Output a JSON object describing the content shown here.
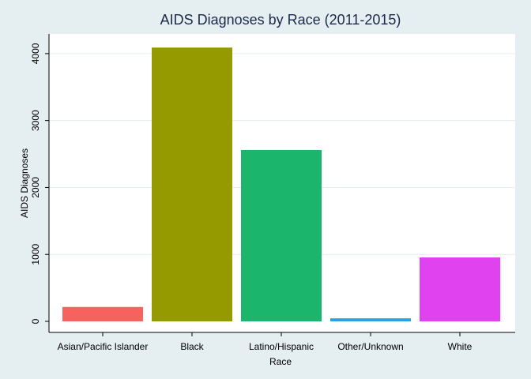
{
  "chart_data": {
    "type": "bar",
    "title": "AIDS Diagnoses by Race (2011-2015)",
    "xlabel": "Race",
    "ylabel": "AIDS Diagnoses",
    "categories": [
      "Asian/Pacific Islander",
      "Black",
      "Latino/Hispanic",
      "Other/Unknown",
      "White"
    ],
    "values": [
      215,
      4090,
      2560,
      45,
      955
    ],
    "colors": [
      "#f8625e",
      "#949a00",
      "#1bb56b",
      "#2aa1dc",
      "#e042f0"
    ],
    "y_ticks": [
      0,
      1000,
      2000,
      3000,
      4000
    ],
    "ylim": [
      0,
      4100
    ],
    "grid": true,
    "legend": "none"
  }
}
